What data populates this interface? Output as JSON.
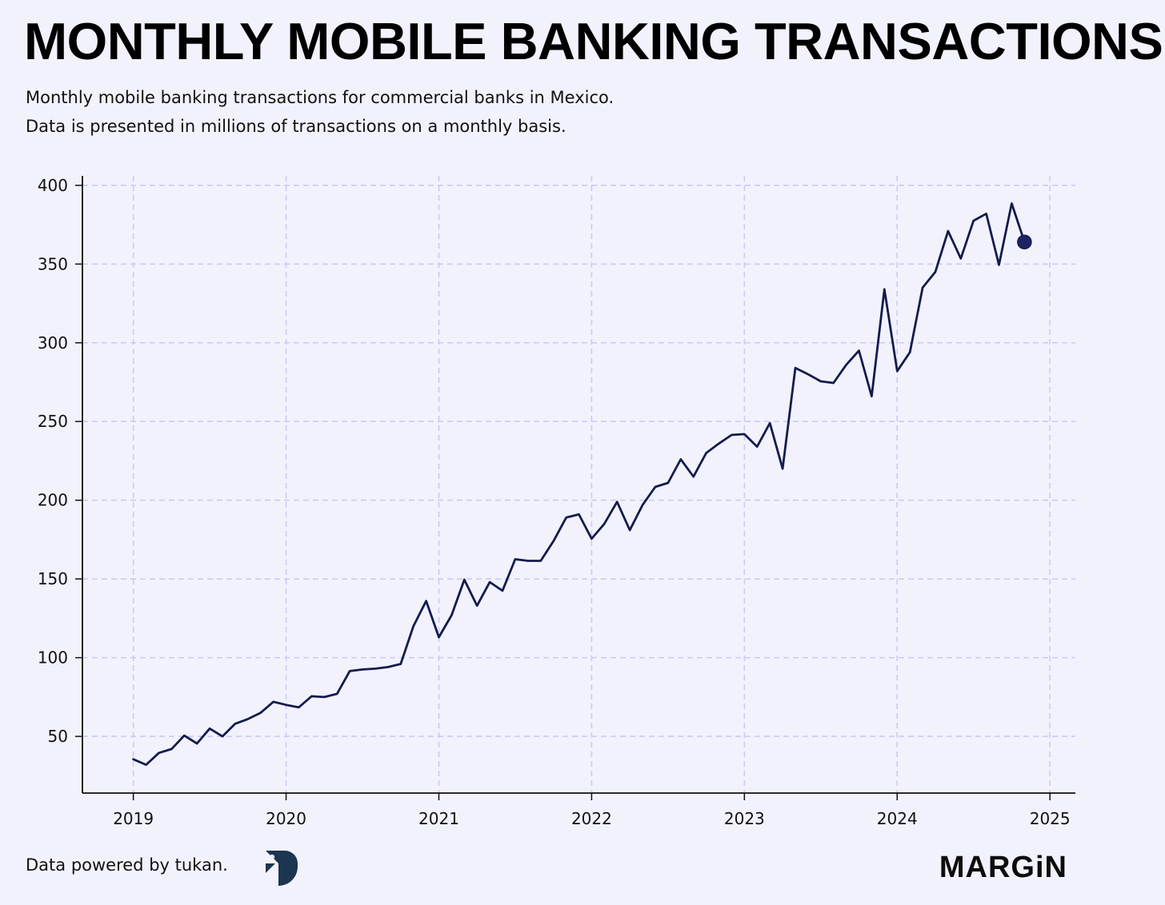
{
  "title": "MONTHLY MOBILE BANKING TRANSACTIONS",
  "subtitle_line1": "Monthly mobile banking transactions for commercial banks in Mexico.",
  "subtitle_line2": "Data is presented in millions of transactions on a monthly basis.",
  "footer": {
    "source_text": "Data powered by tukan.",
    "source_logo_icon": "tukan-logo-icon",
    "brand": "MARGiN"
  },
  "colors": {
    "background": "#f2f2fd",
    "line": "#141b4d",
    "grid": "#c9caf6",
    "axis": "#111111"
  },
  "chart_data": {
    "type": "line",
    "title": "MONTHLY MOBILE BANKING TRANSACTIONS",
    "xlabel": "",
    "ylabel": "",
    "grid": true,
    "xlim": [
      "2018-09",
      "2025-03"
    ],
    "ylim": [
      14,
      406
    ],
    "x_ticks": [
      "2019",
      "2020",
      "2021",
      "2022",
      "2023",
      "2024",
      "2025"
    ],
    "y_ticks": [
      50,
      100,
      150,
      200,
      250,
      300,
      350,
      400
    ],
    "end_marker": true,
    "series": [
      {
        "x": [
          "2019-01",
          "2019-02",
          "2019-03",
          "2019-04",
          "2019-05",
          "2019-06",
          "2019-07",
          "2019-08",
          "2019-09",
          "2019-10",
          "2019-11",
          "2019-12",
          "2020-01",
          "2020-02",
          "2020-03",
          "2020-04",
          "2020-05",
          "2020-06",
          "2020-07",
          "2020-08",
          "2020-09",
          "2020-10",
          "2020-11",
          "2020-12",
          "2021-01",
          "2021-02",
          "2021-03",
          "2021-04",
          "2021-05",
          "2021-06",
          "2021-07",
          "2021-08",
          "2021-09",
          "2021-10",
          "2021-11",
          "2021-12",
          "2022-01",
          "2022-02",
          "2022-03",
          "2022-04",
          "2022-05",
          "2022-06",
          "2022-07",
          "2022-08",
          "2022-09",
          "2022-10",
          "2022-11",
          "2022-12",
          "2023-01",
          "2023-02",
          "2023-03",
          "2023-04",
          "2023-05",
          "2023-06",
          "2023-07",
          "2023-08",
          "2023-09",
          "2023-10",
          "2023-11",
          "2023-12",
          "2024-01",
          "2024-02",
          "2024-03",
          "2024-04",
          "2024-05",
          "2024-06",
          "2024-07",
          "2024-08",
          "2024-09",
          "2024-10",
          "2024-11"
        ],
        "values": [
          35.5,
          32,
          39.5,
          42,
          50.5,
          45.5,
          55,
          50,
          58,
          61,
          65,
          72,
          70,
          68.5,
          75.5,
          75,
          77,
          91.5,
          92.5,
          93,
          94,
          96,
          120,
          136,
          113,
          127,
          149.5,
          133,
          148,
          142.5,
          162.5,
          161.5,
          161.5,
          174,
          189,
          191,
          175.5,
          185,
          199,
          181,
          197,
          208.5,
          211,
          226,
          215,
          230,
          236,
          241.5,
          242,
          234,
          249,
          220,
          284,
          280,
          275.5,
          274.5,
          286,
          295,
          266,
          334,
          282,
          294,
          335,
          345,
          371,
          353.5,
          377.5,
          382,
          349.5,
          388.5,
          364
        ]
      }
    ]
  }
}
